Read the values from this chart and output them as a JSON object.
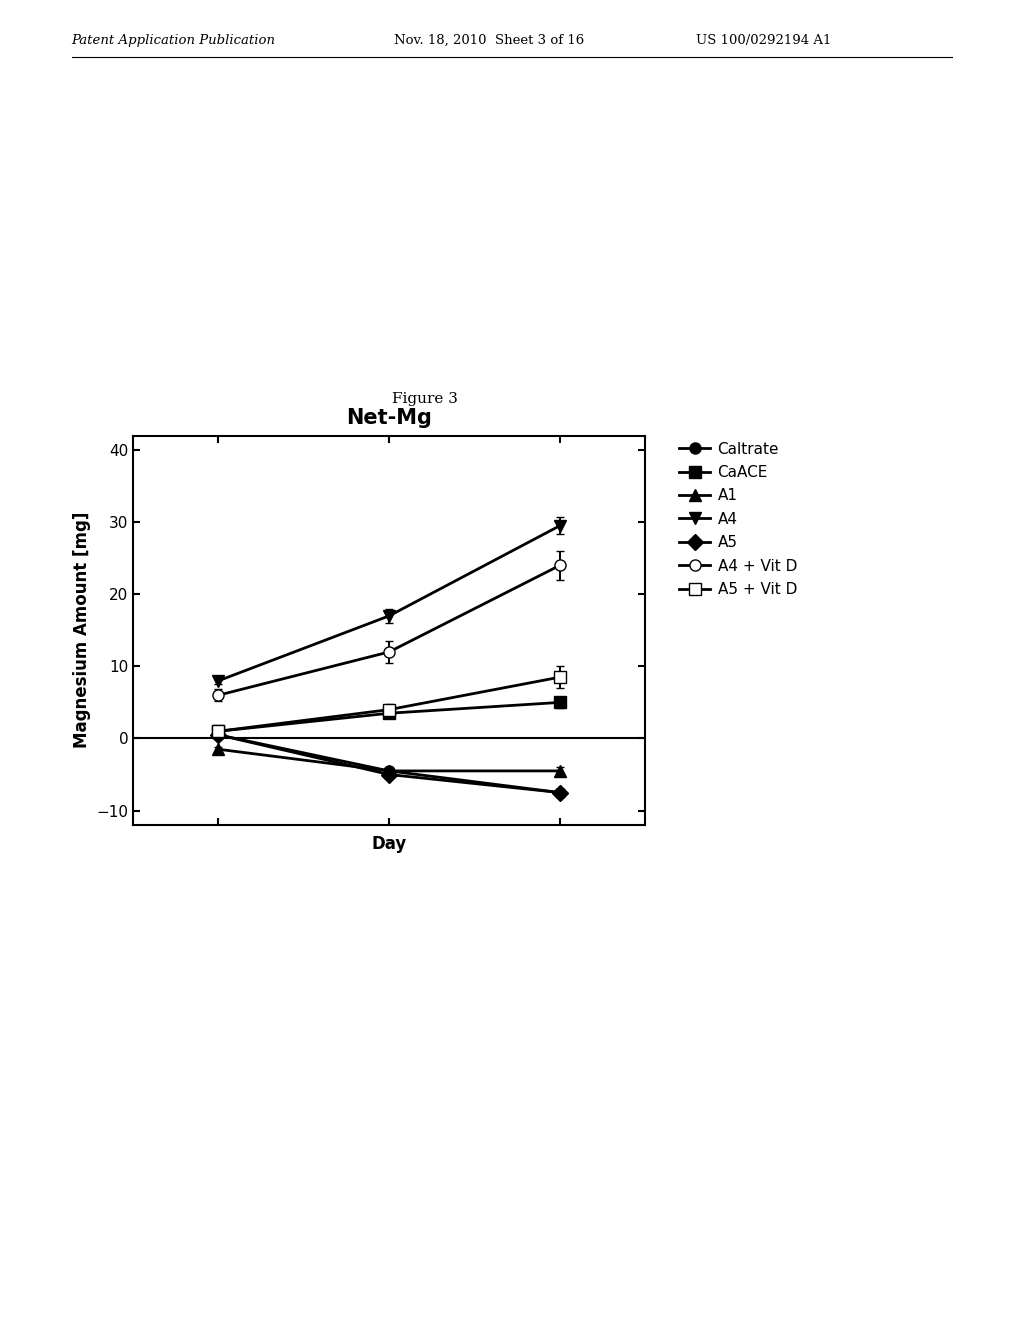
{
  "title": "Net-Mg",
  "figure_label": "Figure 3",
  "xlabel": "Day",
  "ylabel": "Magnesium Amount [mg]",
  "ylim": [
    -12,
    42
  ],
  "yticks": [
    -10,
    0,
    10,
    20,
    30,
    40
  ],
  "x_positions": [
    1,
    2,
    3
  ],
  "series": [
    {
      "label": "Caltrate",
      "y": [
        0.5,
        -4.5,
        -7.5
      ],
      "yerr": [
        0.3,
        0.5,
        0.5
      ],
      "marker": "o",
      "fillstyle": "full",
      "color": "#000000",
      "linestyle": "-"
    },
    {
      "label": "CaACE",
      "y": [
        1.0,
        3.5,
        5.0
      ],
      "yerr": [
        0.4,
        0.6,
        0.8
      ],
      "marker": "s",
      "fillstyle": "full",
      "color": "#000000",
      "linestyle": "-"
    },
    {
      "label": "A1",
      "y": [
        -1.5,
        -4.5,
        -4.5
      ],
      "yerr": [
        0.3,
        0.4,
        0.5
      ],
      "marker": "^",
      "fillstyle": "full",
      "color": "#000000",
      "linestyle": "-"
    },
    {
      "label": "A4",
      "y": [
        8.0,
        17.0,
        29.5
      ],
      "yerr": [
        0.5,
        1.0,
        1.2
      ],
      "marker": "v",
      "fillstyle": "full",
      "color": "#000000",
      "linestyle": "-"
    },
    {
      "label": "A5",
      "y": [
        0.5,
        -5.0,
        -7.5
      ],
      "yerr": [
        0.3,
        0.5,
        0.5
      ],
      "marker": "D",
      "fillstyle": "full",
      "color": "#000000",
      "linestyle": "-"
    },
    {
      "label": "A4 + Vit D",
      "y": [
        6.0,
        12.0,
        24.0
      ],
      "yerr": [
        0.8,
        1.5,
        2.0
      ],
      "marker": "o",
      "fillstyle": "none",
      "color": "#000000",
      "linestyle": "-"
    },
    {
      "label": "A5 + Vit D",
      "y": [
        1.0,
        4.0,
        8.5
      ],
      "yerr": [
        0.5,
        0.8,
        1.5
      ],
      "marker": "s",
      "fillstyle": "none",
      "color": "#000000",
      "linestyle": "-"
    }
  ],
  "background_color": "#ffffff",
  "markersize": 8,
  "linewidth": 2.0,
  "header_left": "Patent Application Publication",
  "header_mid": "Nov. 18, 2010  Sheet 3 of 16",
  "header_right": "US 100/0292194 A1"
}
